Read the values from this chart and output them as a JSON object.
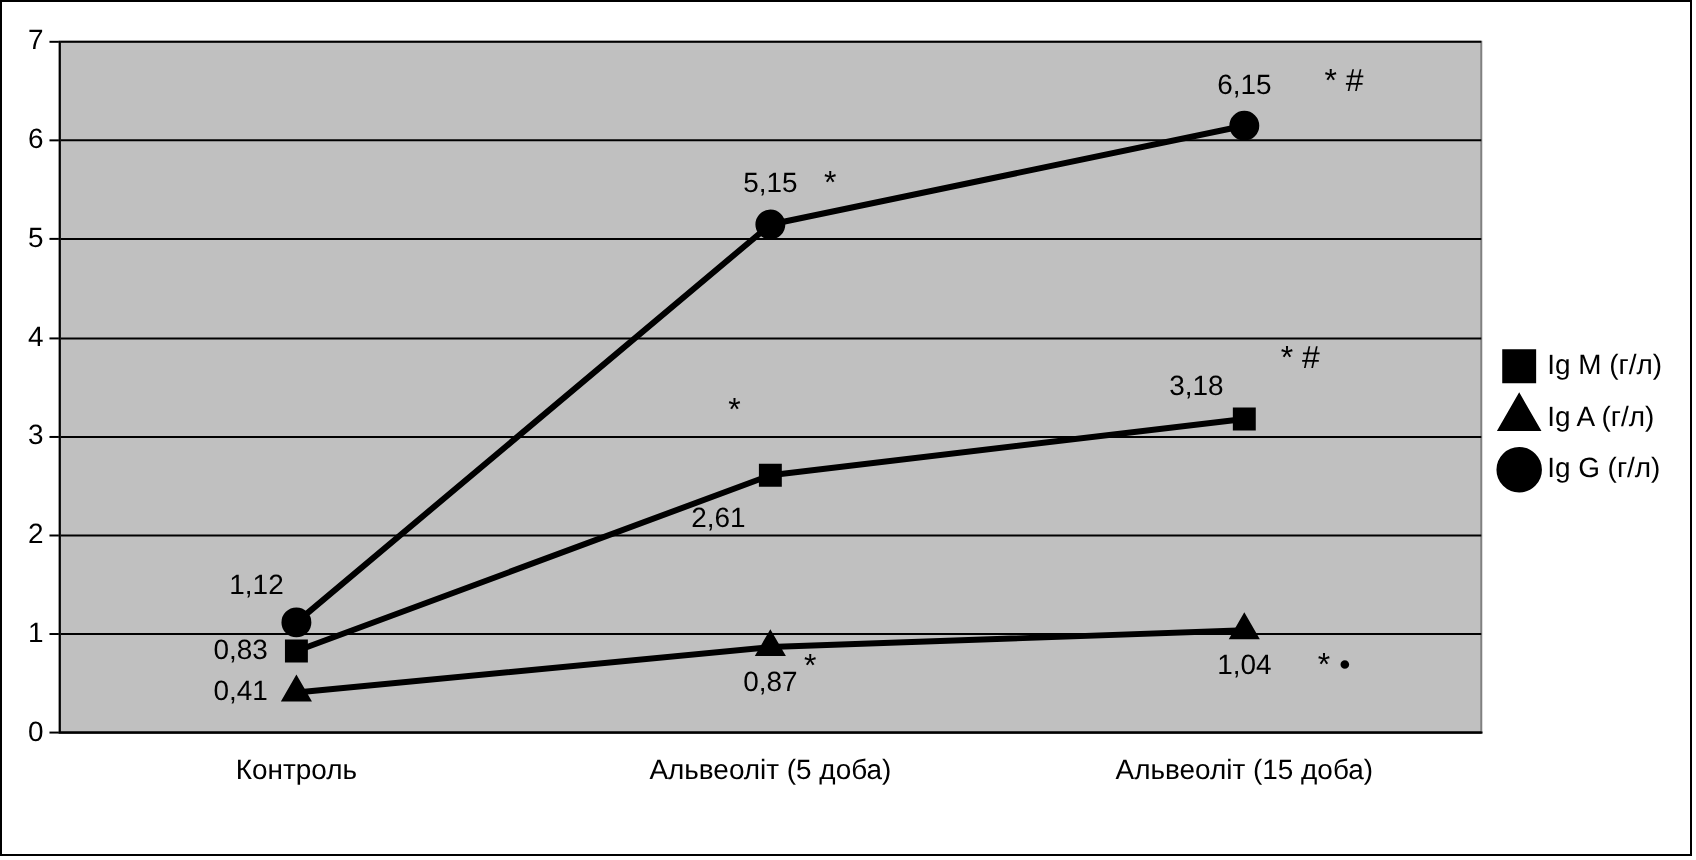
{
  "chart_data": {
    "type": "line",
    "categories": [
      "Контроль",
      "Альвеоліт (5 доба)",
      "Альвеоліт (15 доба)"
    ],
    "series": [
      {
        "name": "Ig M (г/л)",
        "color": "#000000",
        "marker": "square",
        "values": [
          0.83,
          2.61,
          3.18
        ],
        "value_labels": [
          "0,83",
          "2,61",
          "3,18"
        ]
      },
      {
        "name": "Ig A (г/л)",
        "color": "#000000",
        "marker": "triangle",
        "values": [
          0.41,
          0.87,
          1.04
        ],
        "value_labels": [
          "0,41",
          "0,87",
          "1,04"
        ]
      },
      {
        "name": "Ig G (г/л)",
        "color": "#000000",
        "marker": "circle",
        "values": [
          1.12,
          5.15,
          6.15
        ],
        "value_labels": [
          "1,12",
          "5,15",
          "6,15"
        ]
      }
    ],
    "ylim": [
      0,
      7
    ],
    "yticks": [
      0,
      1,
      2,
      3,
      4,
      5,
      6,
      7
    ],
    "grid": "y",
    "legend": "right",
    "line_style": "solid",
    "annotations": [
      {
        "text": "*",
        "x": "Альвеоліт (5 доба)",
        "y": 5.15
      },
      {
        "text": "* #",
        "x": "Альвеоліт (15 доба)",
        "y": 6.15
      },
      {
        "text": "*",
        "x": "Альвеоліт (5 доба)",
        "y": 2.61
      },
      {
        "text": "* #",
        "x": "Альвеоліт (15 доба)",
        "y": 3.18
      },
      {
        "text": "*",
        "x": "Альвеоліт (5 доба)",
        "y": 0.87
      },
      {
        "text": "* •",
        "x": "Альвеоліт (15 доба)",
        "y": 1.04
      }
    ]
  }
}
